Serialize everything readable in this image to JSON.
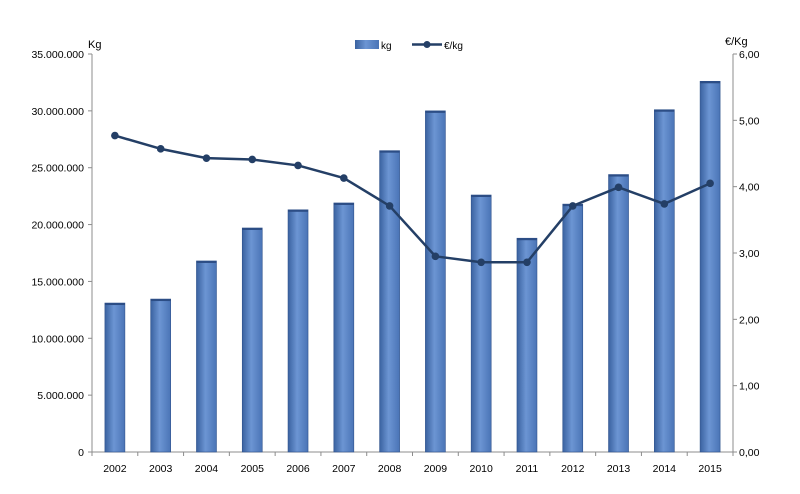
{
  "chart_data": {
    "type": "bar",
    "categories": [
      "2002",
      "2003",
      "2004",
      "2005",
      "2006",
      "2007",
      "2008",
      "2009",
      "2010",
      "2011",
      "2012",
      "2013",
      "2014",
      "2015"
    ],
    "series": [
      {
        "name": "kg",
        "type": "bar",
        "axis": "left",
        "values": [
          13100000,
          13450000,
          16800000,
          19700000,
          21300000,
          21900000,
          26500000,
          30000000,
          22600000,
          18800000,
          21800000,
          24400000,
          30100000,
          32600000
        ]
      },
      {
        "name": "€/kg",
        "type": "line",
        "axis": "right",
        "values": [
          4.77,
          4.57,
          4.43,
          4.41,
          4.32,
          4.13,
          3.71,
          2.95,
          2.86,
          2.86,
          3.71,
          3.99,
          3.74,
          4.05
        ]
      }
    ],
    "y_left": {
      "label": "Kg",
      "ylim": [
        0,
        35000000
      ],
      "ticks": [
        "0",
        "5.000.000",
        "10.000.000",
        "15.000.000",
        "20.000.000",
        "25.000.000",
        "30.000.000",
        "35.000.000"
      ]
    },
    "y_right": {
      "label": "€/Kg",
      "ylim": [
        0,
        6
      ],
      "ticks": [
        "0,00",
        "1,00",
        "2,00",
        "3,00",
        "4,00",
        "5,00",
        "6,00"
      ]
    },
    "grid": false,
    "legend_position": "top-center",
    "colors": {
      "bar": "#5b86c5",
      "bar_dark": "#3d66a6",
      "line": "#243f66"
    }
  }
}
